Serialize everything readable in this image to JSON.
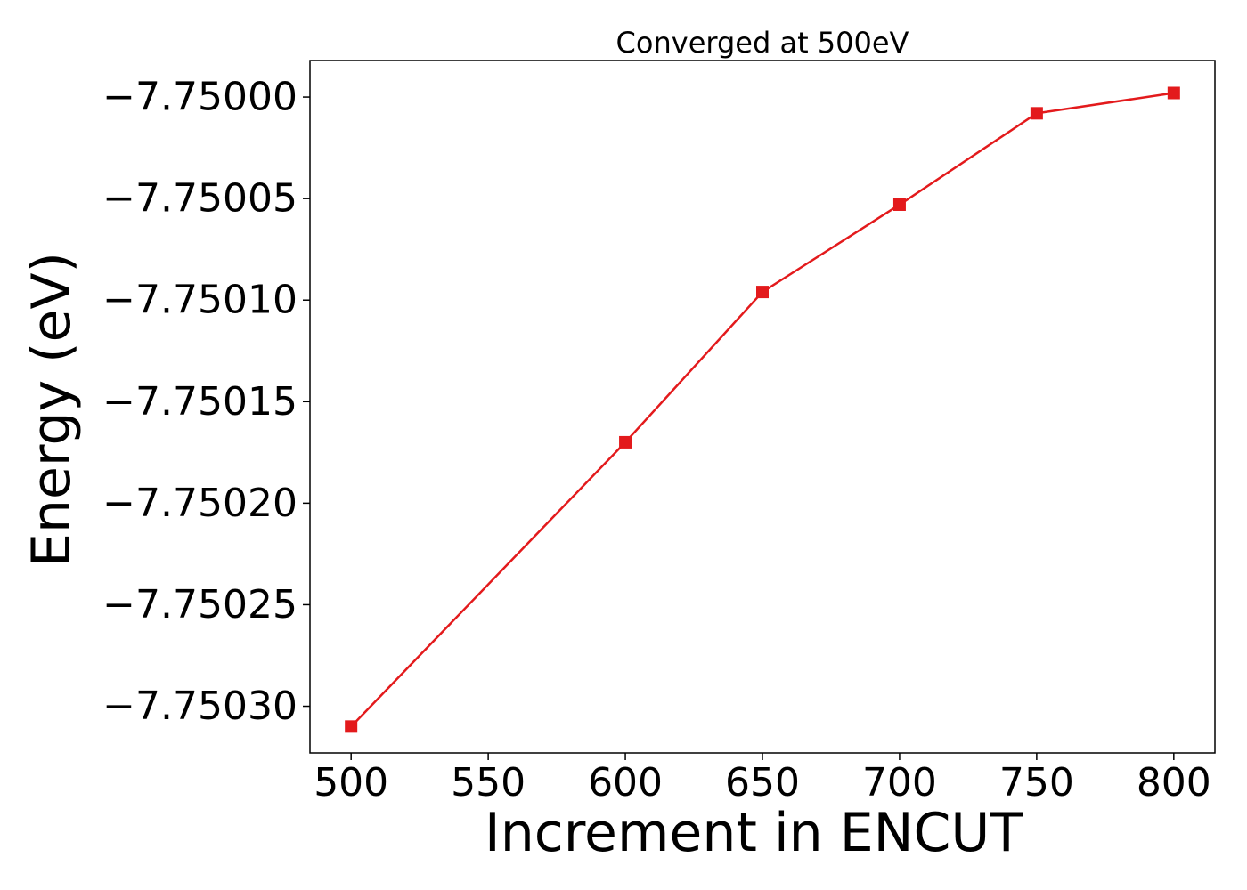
{
  "chart_data": {
    "type": "line",
    "title": "Converged at 500eV",
    "xlabel": "Increment in ENCUT",
    "ylabel": "Energy (eV)",
    "x": [
      500,
      600,
      650,
      700,
      750,
      800
    ],
    "series": [
      {
        "values": [
          -7.75031,
          -7.75017,
          -7.750096,
          -7.750053,
          -7.750008,
          -7.749998
        ],
        "color": "#e31a1c",
        "marker": "square"
      }
    ],
    "xlim": [
      485,
      815
    ],
    "ylim": [
      -7.750323,
      -7.749982
    ],
    "xticks": [
      500,
      550,
      600,
      650,
      700,
      750,
      800
    ],
    "xtick_labels": [
      "500",
      "550",
      "600",
      "650",
      "700",
      "750",
      "800"
    ],
    "yticks": [
      -7.7503,
      -7.75025,
      -7.7502,
      -7.75015,
      -7.7501,
      -7.75005,
      -7.75
    ],
    "ytick_labels": [
      "−7.75030",
      "−7.75025",
      "−7.75020",
      "−7.75015",
      "−7.75010",
      "−7.75005",
      "−7.75000"
    ],
    "grid": false,
    "legend": "none"
  }
}
